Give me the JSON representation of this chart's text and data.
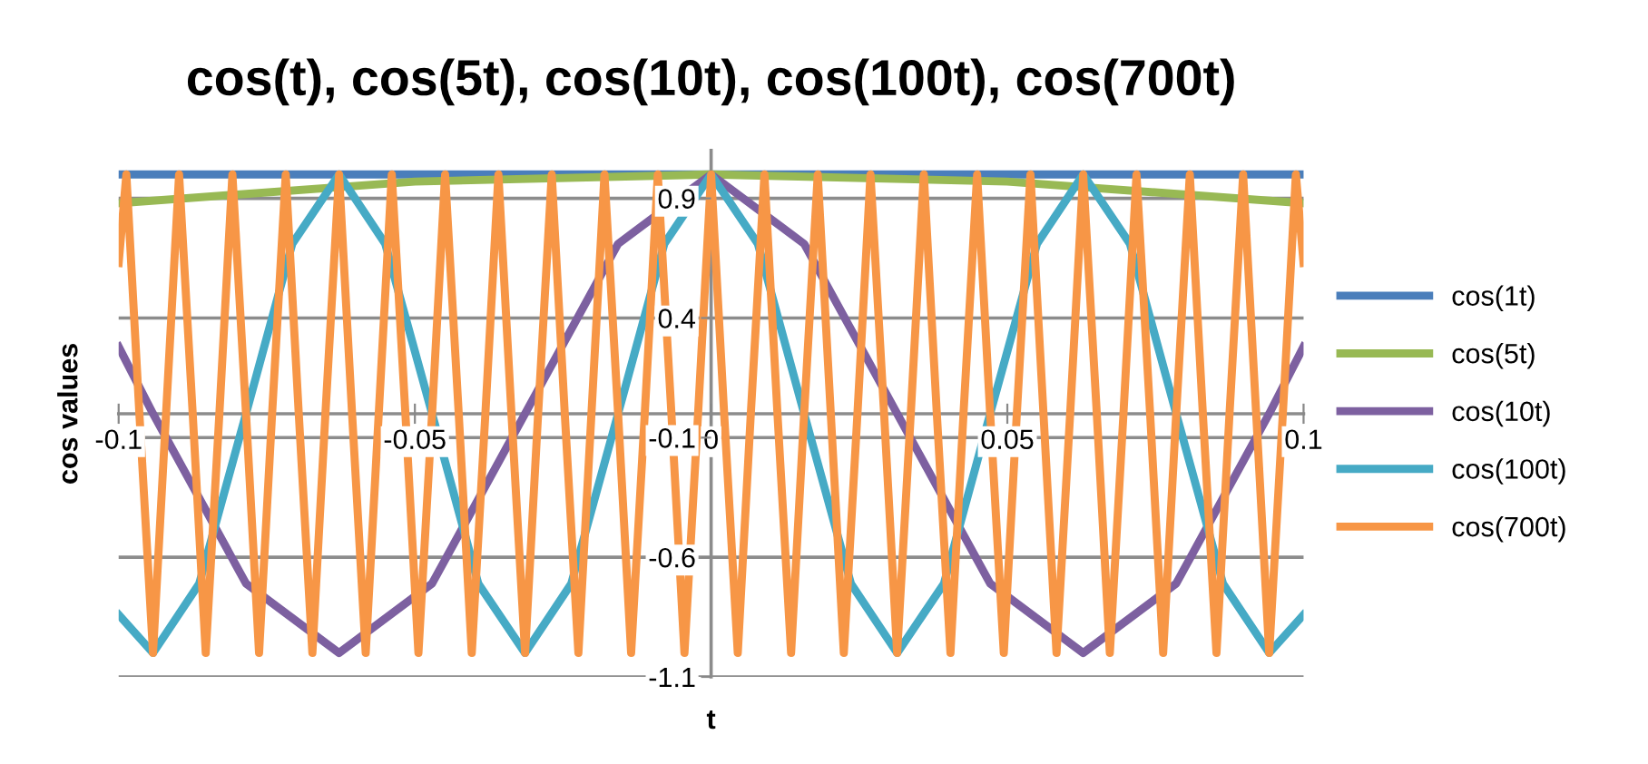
{
  "chart_data": {
    "type": "line",
    "title": "cos(t), cos(5t), cos(10t), cos(100t), cos(700t)",
    "xlabel": "t",
    "ylabel": "cos values",
    "xlim": [
      -0.1,
      0.1
    ],
    "ylim": [
      -1.1,
      1.1
    ],
    "xticks": [
      -0.1,
      -0.05,
      0,
      0.05,
      0.1
    ],
    "yticks": [
      -1.1,
      -0.6,
      -0.1,
      0.4,
      0.9
    ],
    "grid": "y",
    "legend": "right",
    "line_style": "solid",
    "series": [
      {
        "name": "cos(1t)",
        "color": "#4a7ebb",
        "x": [
          -0.1,
          0,
          0.1
        ],
        "values": [
          1,
          1,
          1
        ]
      },
      {
        "name": "cos(5t)",
        "color": "#98b954",
        "x": [
          -0.1,
          -0.05,
          0,
          0.05,
          0.1
        ],
        "values": [
          0.88,
          0.97,
          1,
          0.97,
          0.88
        ]
      },
      {
        "name": "cos(10t)",
        "color": "#7d60a0",
        "x": [
          -0.1,
          -0.0942,
          -0.0785,
          -0.0628,
          -0.0471,
          -0.0314,
          -0.0157,
          0,
          0.0157,
          0.0314,
          0.0471,
          0.0628,
          0.0785,
          0.0942,
          0.1
        ],
        "values": [
          0.28,
          0,
          -0.71,
          -1,
          -0.71,
          0,
          0.71,
          1,
          0.71,
          0,
          -0.71,
          -1,
          -0.71,
          0,
          0.28
        ]
      },
      {
        "name": "cos(100t)",
        "color": "#46aac5",
        "x": [
          -0.1,
          -0.0942,
          -0.0864,
          -0.0785,
          -0.0707,
          -0.0628,
          -0.055,
          -0.0471,
          -0.0393,
          -0.0314,
          -0.0236,
          -0.0157,
          -0.0079,
          0,
          0.0079,
          0.0157,
          0.0236,
          0.0314,
          0.0393,
          0.0471,
          0.055,
          0.0628,
          0.0707,
          0.0785,
          0.0864,
          0.0942,
          0.1
        ],
        "values": [
          -0.84,
          -1,
          -0.71,
          0,
          0.71,
          1,
          0.71,
          0,
          -0.71,
          -1,
          -0.71,
          0,
          0.71,
          1,
          0.71,
          0,
          -0.71,
          -1,
          -0.71,
          0,
          0.71,
          1,
          0.71,
          0,
          -0.71,
          -1,
          -0.84
        ]
      },
      {
        "name": "cos(700t)",
        "color": "#f79646",
        "x": [
          -0.1,
          -0.0987,
          -0.0965,
          -0.0942,
          -0.092,
          -0.0898,
          -0.0875,
          -0.0853,
          -0.083,
          -0.0808,
          -0.0785,
          -0.0763,
          -0.0741,
          -0.0718,
          -0.0696,
          -0.0673,
          -0.0651,
          -0.0628,
          -0.0606,
          -0.0583,
          -0.0561,
          -0.0539,
          -0.0516,
          -0.0494,
          -0.0471,
          -0.0449,
          -0.0426,
          -0.0404,
          -0.0381,
          -0.0359,
          -0.0337,
          -0.0314,
          -0.0292,
          -0.0269,
          -0.0247,
          -0.0224,
          -0.0202,
          -0.018,
          -0.0157,
          -0.0135,
          -0.0112,
          -0.009,
          -0.0067,
          -0.0045,
          -0.0022,
          0,
          0.0022,
          0.0045,
          0.0067,
          0.009,
          0.0112,
          0.0135,
          0.0157,
          0.018,
          0.0202,
          0.0224,
          0.0247,
          0.0269,
          0.0292,
          0.0314,
          0.0337,
          0.0359,
          0.0381,
          0.0404,
          0.0426,
          0.0449,
          0.0471,
          0.0494,
          0.0516,
          0.0539,
          0.0561,
          0.0583,
          0.0606,
          0.0628,
          0.0651,
          0.0673,
          0.0696,
          0.0718,
          0.0741,
          0.0763,
          0.0785,
          0.0808,
          0.083,
          0.0853,
          0.0875,
          0.0898,
          0.092,
          0.0942,
          0.0965,
          0.0987,
          0.1
        ],
        "values": [
          0.63,
          1,
          0,
          -1,
          0,
          1,
          0,
          -1,
          0,
          1,
          0,
          -1,
          0,
          1,
          0,
          -1,
          0,
          1,
          0,
          -1,
          0,
          1,
          0,
          -1,
          0,
          1,
          0,
          -1,
          0,
          1,
          0,
          -1,
          0,
          1,
          0,
          -1,
          0,
          1,
          0,
          -1,
          0,
          1,
          0,
          -1,
          0,
          1,
          0,
          -1,
          0,
          1,
          0,
          -1,
          0,
          1,
          0,
          -1,
          0,
          1,
          0,
          -1,
          0,
          1,
          0,
          -1,
          0,
          1,
          0,
          -1,
          0,
          1,
          0,
          -1,
          0,
          1,
          0,
          -1,
          0,
          1,
          0,
          -1,
          0,
          1,
          0,
          -1,
          0,
          1,
          0,
          -1,
          0,
          1,
          0.63
        ]
      }
    ]
  }
}
